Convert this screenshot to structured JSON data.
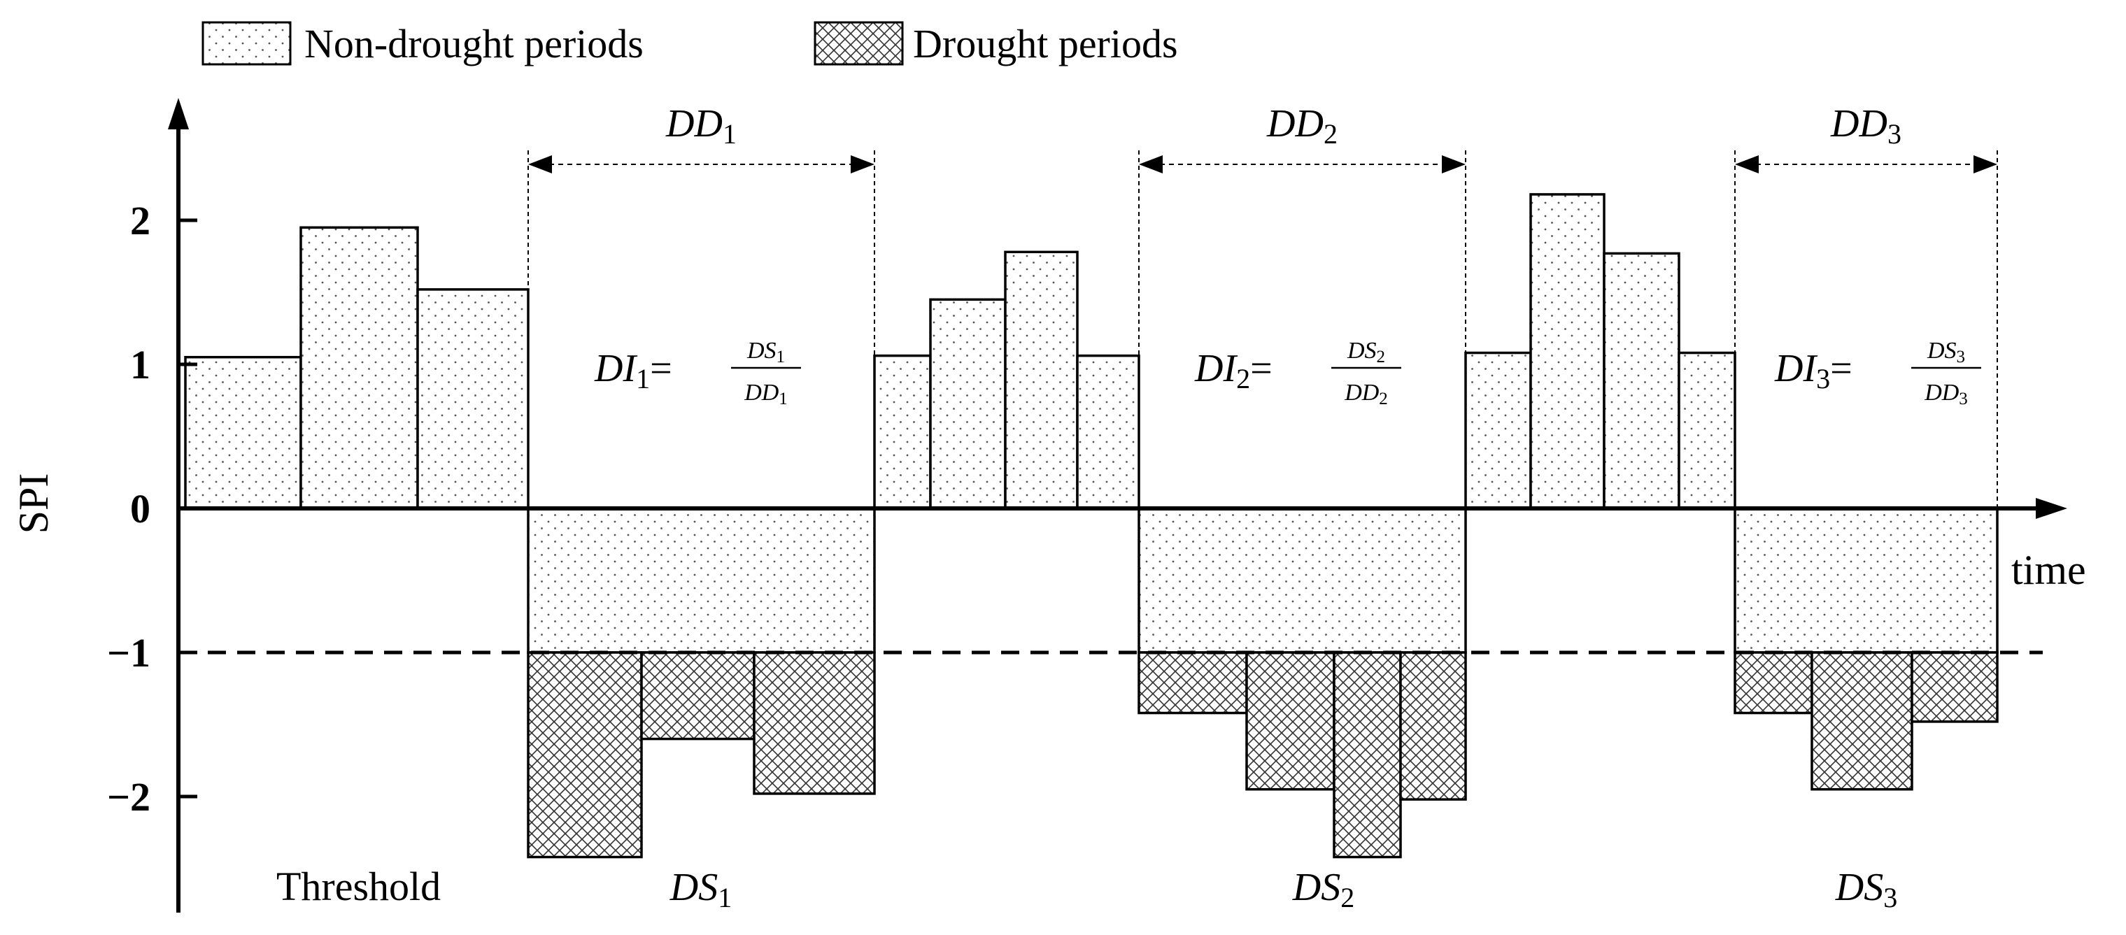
{
  "chart_data": {
    "type": "bar",
    "ylabel": "SPI",
    "xlabel": "time",
    "ylim": [
      -2.6,
      2.7
    ],
    "yticks": [
      "2",
      "1",
      "0",
      "−1",
      "−2"
    ],
    "ytick_values": [
      2,
      1,
      0,
      -1,
      -2
    ],
    "threshold": {
      "value": -1,
      "label": "Threshold"
    },
    "legend": {
      "position": "top-left",
      "entries": [
        {
          "label": "Non-drought periods",
          "pattern": "dots"
        },
        {
          "label": "Drought periods",
          "pattern": "crosshatch"
        }
      ]
    },
    "non_drought_bars": [
      1.05,
      1.95,
      1.52,
      1.06,
      1.45,
      1.78,
      1.06,
      1.08,
      2.18,
      1.77,
      1.08
    ],
    "drought_events": [
      {
        "name": "1",
        "values": [
          -2.42,
          -1.6,
          -1.98
        ],
        "duration_label": "DD",
        "severity_label": "DS",
        "intensity_label": "DI"
      },
      {
        "name": "2",
        "values": [
          -1.42,
          -1.95,
          -2.42,
          -2.02
        ],
        "duration_label": "DD",
        "severity_label": "DS",
        "intensity_label": "DI"
      },
      {
        "name": "3",
        "values": [
          -1.42,
          -1.95,
          -1.48
        ],
        "duration_label": "DD",
        "severity_label": "DS",
        "intensity_label": "DI"
      }
    ]
  }
}
